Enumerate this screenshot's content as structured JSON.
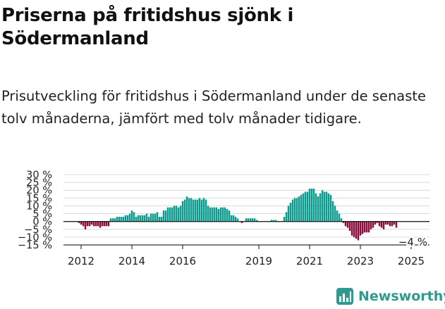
{
  "title": "Priserna på fritidshus sjönk i Södermanland",
  "subtitle": "Prisutveckling för fritidshus i Södermanland under de senaste tolv månaderna, jämfört med tolv månader tidigare.",
  "brand": {
    "name": "Newsworthy",
    "color": "#2f9a8e"
  },
  "colors": {
    "positive": "#0b9b8f",
    "negative": "#8b0e3a",
    "grid": "#d9d9d9",
    "axis": "#333333"
  },
  "chart_data": {
    "type": "bar",
    "title": "Prisutveckling för fritidshus i Södermanland",
    "xlabel": "",
    "ylabel": "",
    "ylim": [
      -15,
      30
    ],
    "yticks": [
      30,
      25,
      20,
      15,
      10,
      5,
      0,
      -5,
      -10,
      -15
    ],
    "ytick_labels": [
      "30 %",
      "25 %",
      "20 %",
      "15 %",
      "10 %",
      "5 %",
      "0 %",
      "−5 %",
      "−10 %",
      "−15 %"
    ],
    "xticks": [
      2012,
      2014,
      2016,
      2019,
      2021,
      2023,
      2025
    ],
    "xtick_labels": [
      "2012",
      "2014",
      "2016",
      "2019",
      "2021",
      "2023",
      "2025"
    ],
    "x_start": 2011.917,
    "x_step": 0.083333,
    "annotation": {
      "text": "−4 %"
    },
    "values": [
      -1,
      -2,
      -3,
      -5,
      -3,
      -3,
      -2,
      -3,
      -3,
      -3,
      -4,
      -3,
      -3,
      -3,
      -3,
      2,
      2,
      2,
      3,
      3,
      3,
      3,
      4,
      4,
      5,
      7,
      6,
      3,
      4,
      4,
      4,
      4,
      5,
      3,
      5,
      5,
      5,
      6,
      3,
      3,
      7,
      7,
      9,
      9,
      9,
      10,
      10,
      9,
      10,
      13,
      14,
      16,
      15,
      15,
      14,
      14,
      14,
      15,
      14,
      15,
      14,
      10,
      9,
      9,
      9,
      9,
      8,
      9,
      9,
      9,
      8,
      7,
      4,
      4,
      3,
      2,
      0,
      -1,
      0,
      2,
      2,
      2,
      2,
      2,
      1,
      0,
      0,
      0,
      0,
      0,
      0,
      1,
      1,
      1,
      0,
      0,
      0,
      3,
      6,
      10,
      12,
      14,
      15,
      15,
      16,
      17,
      18,
      19,
      19,
      21,
      21,
      21,
      18,
      16,
      18,
      20,
      19,
      19,
      18,
      17,
      13,
      10,
      7,
      5,
      2,
      -1,
      -3,
      -4,
      -6,
      -9,
      -10,
      -11,
      -12,
      -9,
      -8,
      -7,
      -7,
      -7,
      -5,
      -4,
      -2,
      -1,
      -3,
      -4,
      -5,
      -2,
      -2,
      -3,
      -3,
      -2,
      -4
    ]
  }
}
